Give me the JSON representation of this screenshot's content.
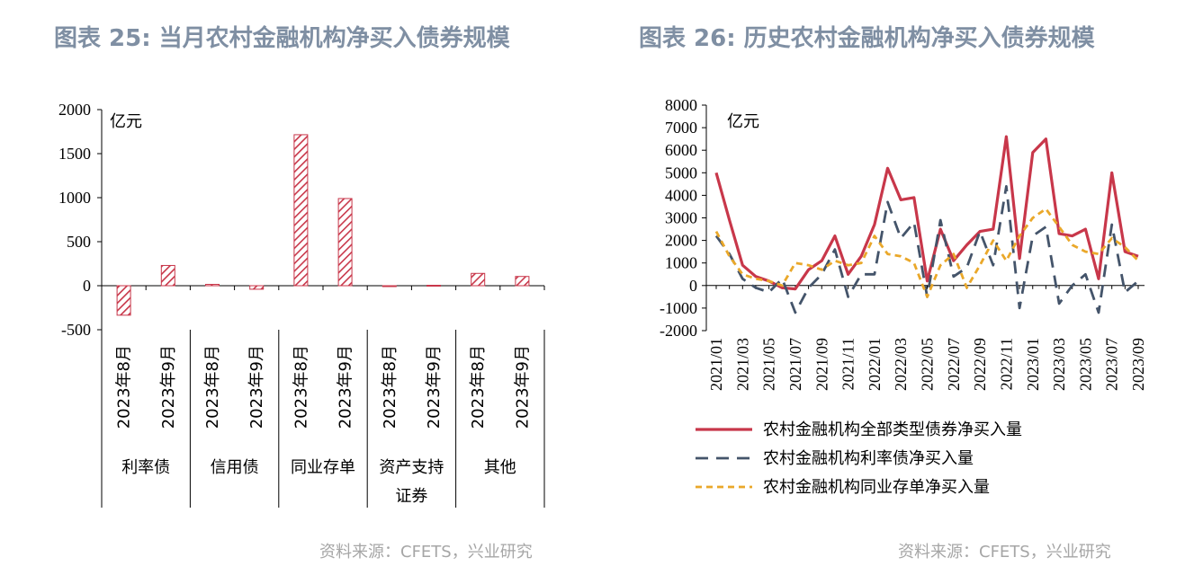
{
  "left_panel": {
    "title": "图表 25: 当月农村金融机构净买入债券规模",
    "source": "资料来源：CFETS，兴业研究"
  },
  "right_panel": {
    "title": "图表 26: 历史农村金融机构净买入债券规模",
    "source": "资料来源：CFETS，兴业研究"
  },
  "colors": {
    "bar": "#c8374a",
    "total": "#c8374a",
    "rate": "#44546a",
    "ncd": "#eaa82a"
  },
  "chart_data": [
    {
      "type": "bar",
      "title": "",
      "unit_label": "亿元",
      "ylim": [
        -500,
        2000
      ],
      "yticks": [
        "2000",
        "1500",
        "1000",
        "500",
        "0",
        "-500"
      ],
      "ytick_values": [
        2000,
        1500,
        1000,
        500,
        0,
        -500
      ],
      "categories": [
        "2023年8月",
        "2023年9月",
        "2023年8月",
        "2023年9月",
        "2023年8月",
        "2023年9月",
        "2023年8月",
        "2023年9月",
        "2023年8月",
        "2023年9月"
      ],
      "groups": [
        {
          "label": "利率债",
          "lines": [
            "利率债"
          ]
        },
        {
          "label": "信用债",
          "lines": [
            "信用债"
          ]
        },
        {
          "label": "同业存单",
          "lines": [
            "同业存单"
          ]
        },
        {
          "label": "资产支持证券",
          "lines": [
            "资产支持",
            "证券"
          ]
        },
        {
          "label": "其他",
          "lines": [
            "其他"
          ]
        }
      ],
      "values": [
        -335,
        230,
        15,
        -40,
        1715,
        990,
        -10,
        5,
        140,
        105
      ]
    },
    {
      "type": "line",
      "title": "",
      "unit_label": "亿元",
      "ylim": [
        -2000,
        8000
      ],
      "yticks": [
        "8000",
        "7000",
        "6000",
        "5000",
        "4000",
        "3000",
        "2000",
        "1000",
        "0",
        "-1000",
        "-2000"
      ],
      "ytick_values": [
        8000,
        7000,
        6000,
        5000,
        4000,
        3000,
        2000,
        1000,
        0,
        -1000,
        -2000
      ],
      "x": [
        "2021/01",
        "2021/02",
        "2021/03",
        "2021/04",
        "2021/05",
        "2021/06",
        "2021/07",
        "2021/08",
        "2021/09",
        "2021/10",
        "2021/11",
        "2021/12",
        "2022/01",
        "2022/02",
        "2022/03",
        "2022/04",
        "2022/05",
        "2022/06",
        "2022/07",
        "2022/08",
        "2022/09",
        "2022/10",
        "2022/11",
        "2022/12",
        "2023/01",
        "2023/02",
        "2023/03",
        "2023/04",
        "2023/05",
        "2023/06",
        "2023/07",
        "2023/08",
        "2023/09"
      ],
      "xtick_labels": [
        "2021/01",
        "2021/03",
        "2021/05",
        "2021/07",
        "2021/09",
        "2021/11",
        "2022/01",
        "2022/03",
        "2022/05",
        "2022/07",
        "2022/09",
        "2022/11",
        "2023/01",
        "2023/03",
        "2023/05",
        "2023/07",
        "2023/09"
      ],
      "legend": "bottom",
      "series": [
        {
          "name": "农村金融机构全部类型债券净买入量",
          "style": "solid",
          "values": [
            5000,
            2900,
            900,
            400,
            200,
            -100,
            -150,
            700,
            1100,
            2200,
            500,
            1300,
            2700,
            5200,
            3800,
            3900,
            200,
            2500,
            1100,
            1800,
            2400,
            2500,
            6600,
            1200,
            5900,
            6500,
            2300,
            2200,
            2500,
            300,
            5000,
            1500,
            1300
          ]
        },
        {
          "name": "农村金融机构利率债净买入量",
          "style": "dashed",
          "values": [
            2200,
            1400,
            300,
            -100,
            -300,
            300,
            -1200,
            -100,
            500,
            1600,
            -500,
            500,
            500,
            3700,
            2100,
            2800,
            -500,
            2900,
            400,
            800,
            2400,
            900,
            4400,
            -1000,
            2200,
            2600,
            -800,
            0,
            500,
            -1200,
            2700,
            -300,
            200
          ]
        },
        {
          "name": "农村金融机构同业存单净买入量",
          "style": "dotted",
          "values": [
            2400,
            1300,
            500,
            300,
            200,
            0,
            1000,
            900,
            700,
            1100,
            900,
            1000,
            2200,
            1400,
            1300,
            1000,
            -500,
            900,
            1400,
            -100,
            900,
            2000,
            1100,
            2200,
            3000,
            3400,
            2600,
            1800,
            1500,
            1400,
            2100,
            1700,
            1100
          ]
        }
      ]
    }
  ]
}
